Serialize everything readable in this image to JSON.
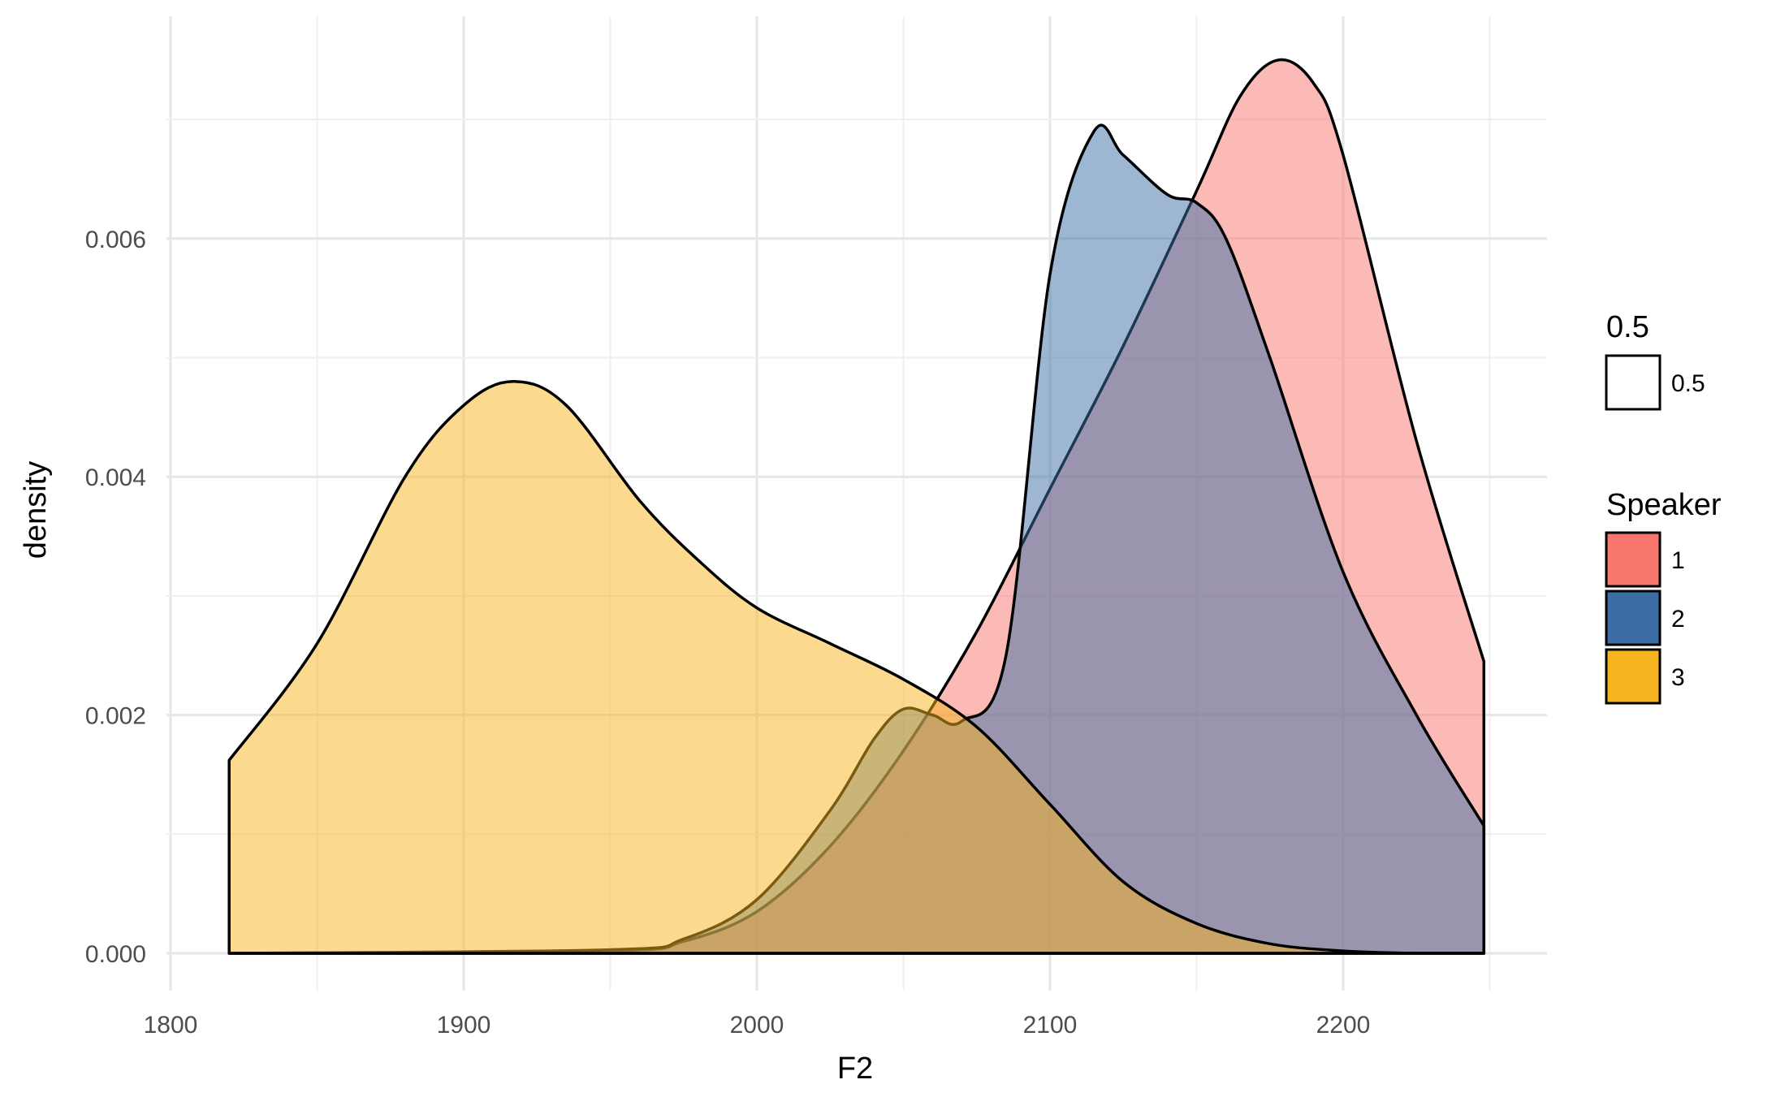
{
  "chart_data": {
    "type": "area",
    "subtype": "density",
    "xlabel": "F2",
    "ylabel": "density",
    "xlim": [
      1800,
      2260
    ],
    "ylim": [
      0,
      0.0075
    ],
    "x_ticks": [
      1800,
      1900,
      2000,
      2100,
      2200
    ],
    "x_tick_labels": [
      "1800",
      "1900",
      "2000",
      "2100",
      "2200"
    ],
    "y_ticks": [
      0.0,
      0.002,
      0.004,
      0.006
    ],
    "y_tick_labels": [
      "0.000",
      "0.002",
      "0.004",
      "0.006"
    ],
    "grid": true,
    "alpha": 0.5,
    "series": [
      {
        "name": "1",
        "color": "#F8766D",
        "x": [
          1820,
          1950,
          1975,
          2000,
          2025,
          2050,
          2075,
          2100,
          2125,
          2150,
          2165,
          2178,
          2190,
          2200,
          2225,
          2248
        ],
        "y": [
          0.0,
          2e-05,
          0.0001,
          0.00035,
          0.0009,
          0.0017,
          0.0027,
          0.0039,
          0.0051,
          0.0064,
          0.0072,
          0.0075,
          0.0073,
          0.0067,
          0.0043,
          0.00245
        ]
      },
      {
        "name": "2",
        "color": "#3C6EA5",
        "x": [
          1820,
          1950,
          1975,
          2000,
          2025,
          2040,
          2050,
          2060,
          2070,
          2085,
          2100,
          2115,
          2125,
          2140,
          2150,
          2160,
          2175,
          2200,
          2225,
          2248
        ],
        "y": [
          0.0,
          3e-05,
          0.00012,
          0.00045,
          0.0012,
          0.0018,
          0.00205,
          0.002,
          0.00195,
          0.0025,
          0.0057,
          0.0069,
          0.0067,
          0.00637,
          0.0063,
          0.006,
          0.005,
          0.0032,
          0.002,
          0.00107
        ]
      },
      {
        "name": "3",
        "color": "#F8B41E",
        "x": [
          1820,
          1850,
          1880,
          1900,
          1917,
          1935,
          1960,
          1980,
          2000,
          2025,
          2050,
          2075,
          2100,
          2125,
          2150,
          2175,
          2200,
          2225,
          2248
        ],
        "y": [
          0.00162,
          0.0026,
          0.004,
          0.0046,
          0.0048,
          0.0046,
          0.0038,
          0.0033,
          0.0029,
          0.0026,
          0.0023,
          0.0019,
          0.00125,
          0.0006,
          0.00025,
          8e-05,
          2e-05,
          0.0,
          0.0
        ]
      }
    ],
    "legend": {
      "placement": "right",
      "alpha_title": "0.5",
      "alpha_label": "0.5",
      "speaker_title": "Speaker",
      "speakers": [
        {
          "label": "1",
          "color": "#F8766D"
        },
        {
          "label": "2",
          "color": "#3C6EA5"
        },
        {
          "label": "3",
          "color": "#F8B41E"
        }
      ]
    }
  }
}
